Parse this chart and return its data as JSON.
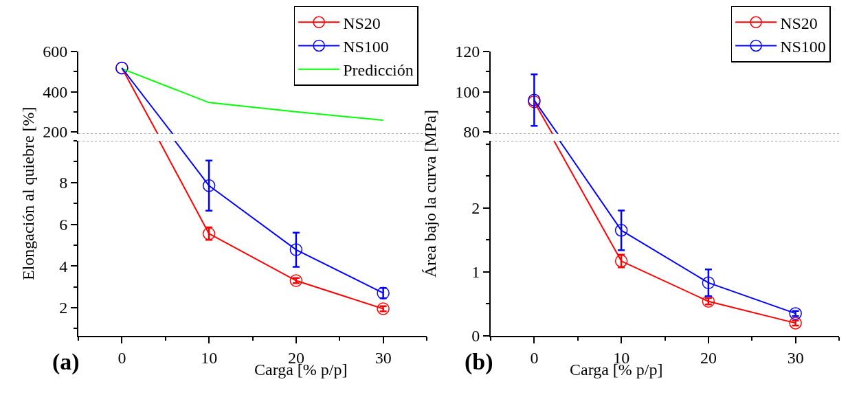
{
  "chart_data": [
    {
      "type": "line",
      "xlim": [
        -5,
        35
      ],
      "ylim": [
        190,
        600
      ],
      "yticks": [
        200,
        400,
        600
      ],
      "tick_labels": "y",
      "ref_lines": [
        {
          "axis": "y",
          "value": 190,
          "color": "#555555",
          "line_style": "dotted"
        }
      ],
      "marker": "circle",
      "legend": "top right",
      "series": [
        {
          "name": "NS20",
          "color": "#ff0000",
          "x": [
            0
          ],
          "values": [
            518
          ]
        },
        {
          "name": "NS100",
          "color": "#0000ff",
          "x": [
            0
          ],
          "values": [
            518
          ]
        },
        {
          "name": "Predicción",
          "color": "#00ff00",
          "x": [
            0,
            10,
            20,
            30
          ],
          "values": [
            515,
            346,
            300,
            258
          ],
          "marker": "none"
        },
        {
          "color": "#ff0000",
          "x": [
            0,
            4.12
          ],
          "values": [
            518,
            190
          ],
          "marker": "none"
        },
        {
          "color": "#0000ff",
          "x": [
            0,
            5.84
          ],
          "values": [
            518,
            190
          ],
          "marker": "none"
        }
      ]
    },
    {
      "type": "line",
      "xlim": [
        -5,
        35
      ],
      "xticks": [
        0,
        10,
        20,
        30
      ],
      "ylim": [
        0.65,
        10
      ],
      "yticks": [
        2,
        4,
        6,
        8
      ],
      "marker": "circle",
      "ref_lines": [
        {
          "axis": "y",
          "value": 10,
          "color": "#555555",
          "line_style": "dotted"
        }
      ],
      "xlabel": "Carga [% p/p]",
      "ylabel": "Elongación al quiebre [%]",
      "annotations": [
        "(a)"
      ],
      "series": [
        {
          "color": "#ff0000",
          "x": [
            10,
            20,
            30
          ],
          "values": [
            5.55,
            3.3,
            1.95
          ],
          "errors": [
            0.3,
            0.12,
            0.12
          ]
        },
        {
          "color": "#0000ff",
          "x": [
            10,
            20,
            30
          ],
          "values": [
            7.85,
            4.78,
            2.7
          ],
          "errors": [
            1.2,
            0.82,
            0.25
          ]
        },
        {
          "color": "#ff0000",
          "x": [
            4.29,
            10
          ],
          "values": [
            10,
            5.55
          ],
          "marker": "none"
        },
        {
          "color": "#0000ff",
          "x": [
            6.08,
            10
          ],
          "values": [
            10,
            7.85
          ],
          "marker": "none"
        }
      ]
    },
    {
      "type": "line",
      "xlim": [
        -5,
        35
      ],
      "ylim": [
        79,
        120
      ],
      "yticks": [
        80,
        100,
        120
      ],
      "tick_labels": "y",
      "ref_lines": [
        {
          "axis": "y",
          "value": 79,
          "color": "#555555",
          "line_style": "dotted"
        }
      ],
      "marker": "circle",
      "legend": "top right",
      "series": [
        {
          "name": "NS20",
          "color": "#ff0000",
          "x": [
            0
          ],
          "values": [
            95
          ]
        },
        {
          "name": "NS100",
          "color": "#0000ff",
          "x": [
            0
          ],
          "values": [
            95.8
          ],
          "errors": [
            12.8
          ]
        },
        {
          "color": "#ff0000",
          "x": [
            0,
            2.1
          ],
          "values": [
            95,
            79
          ],
          "marker": "none"
        },
        {
          "color": "#0000ff",
          "x": [
            0,
            2.71
          ],
          "values": [
            95.8,
            79
          ],
          "marker": "none"
        }
      ]
    },
    {
      "type": "line",
      "xlim": [
        -5,
        35
      ],
      "xticks": [
        0,
        10,
        20,
        30
      ],
      "ylim": [
        0,
        3.05
      ],
      "yticks": [
        0,
        1,
        2
      ],
      "marker": "circle",
      "ref_lines": [
        {
          "axis": "y",
          "value": 3.05,
          "color": "#555555",
          "line_style": "dotted"
        }
      ],
      "xlabel": "Carga [% p/p]",
      "ylabel": "Área bajo la curva [MPa]",
      "annotations": [
        "(b)"
      ],
      "series": [
        {
          "color": "#ff0000",
          "x": [
            10,
            20,
            30
          ],
          "values": [
            1.17,
            0.54,
            0.2
          ],
          "errors": [
            0.1,
            0.05,
            0.04
          ]
        },
        {
          "color": "#0000ff",
          "x": [
            10,
            20,
            30
          ],
          "values": [
            1.65,
            0.83,
            0.35
          ],
          "errors": [
            0.31,
            0.21,
            0.04
          ]
        },
        {
          "color": "#ff0000",
          "x": [
            2.27,
            10
          ],
          "values": [
            3.05,
            1.17
          ],
          "marker": "none"
        },
        {
          "color": "#0000ff",
          "x": [
            2.92,
            10
          ],
          "values": [
            3.05,
            1.65
          ],
          "marker": "none"
        }
      ]
    }
  ]
}
